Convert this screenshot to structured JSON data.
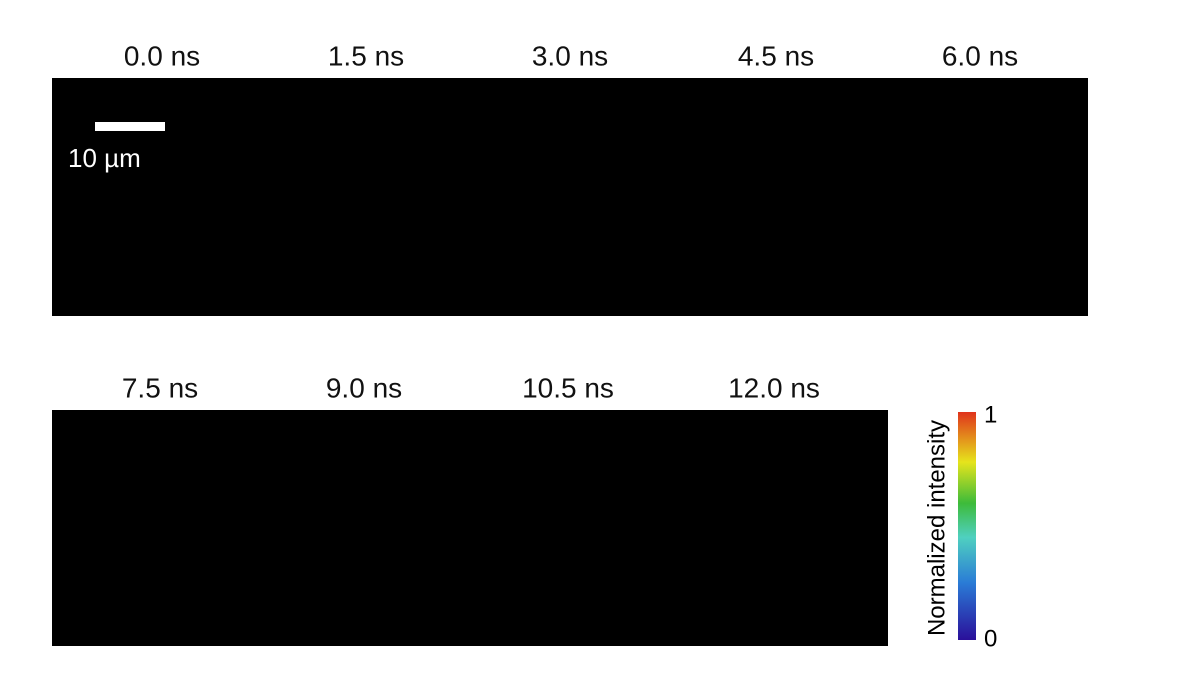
{
  "frames": [
    {
      "label": "0.0 ns"
    },
    {
      "label": "1.5 ns"
    },
    {
      "label": "3.0 ns"
    },
    {
      "label": "4.5 ns"
    },
    {
      "label": "6.0 ns"
    },
    {
      "label": "7.5 ns"
    },
    {
      "label": "9.0 ns"
    },
    {
      "label": "10.5 ns"
    },
    {
      "label": "12.0 ns"
    }
  ],
  "scale_bar": {
    "label": "10 µm"
  },
  "colorbar": {
    "label": "Normalized intensity",
    "max": 1,
    "min": 0
  }
}
